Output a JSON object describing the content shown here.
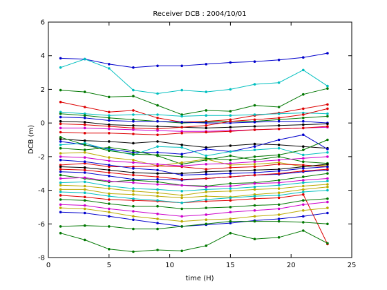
{
  "chart_data": {
    "type": "line",
    "title": "Receiver DCB : 2004/10/01",
    "xlabel": "time (H)",
    "ylabel": "DCB (m)",
    "xlim": [
      0,
      25
    ],
    "ylim": [
      -8,
      6
    ],
    "xticks": [
      0,
      5,
      10,
      15,
      20,
      25
    ],
    "yticks": [
      -8,
      -6,
      -4,
      -2,
      0,
      2,
      4,
      6
    ],
    "grid": false,
    "x": [
      1,
      3,
      5,
      7,
      9,
      11,
      13,
      15,
      17,
      19,
      21,
      23
    ],
    "series": [
      {
        "color": "#0000cc",
        "values": [
          3.85,
          3.8,
          3.5,
          3.3,
          3.4,
          3.4,
          3.5,
          3.6,
          3.65,
          3.75,
          3.9,
          4.15
        ]
      },
      {
        "color": "#00bfbf",
        "values": [
          3.3,
          3.8,
          3.25,
          1.95,
          1.75,
          1.95,
          1.85,
          2.0,
          2.3,
          2.4,
          3.15,
          2.2
        ]
      },
      {
        "color": "#007700",
        "values": [
          1.95,
          1.85,
          1.55,
          1.6,
          1.05,
          0.5,
          0.75,
          0.7,
          1.05,
          0.95,
          1.7,
          2.05
        ]
      },
      {
        "color": "#dd0000",
        "values": [
          1.25,
          0.95,
          0.65,
          0.75,
          0.3,
          0.05,
          0.1,
          0.2,
          0.45,
          0.6,
          0.85,
          1.1
        ]
      },
      {
        "color": "#00bfbf",
        "values": [
          0.65,
          0.55,
          0.45,
          0.5,
          0.5,
          0.4,
          0.45,
          0.45,
          0.5,
          0.55,
          0.6,
          0.55
        ]
      },
      {
        "color": "#007700",
        "values": [
          0.55,
          0.45,
          0.3,
          0.2,
          0.1,
          0.0,
          0.05,
          0.1,
          0.1,
          0.2,
          0.3,
          0.4
        ]
      },
      {
        "color": "#0000cc",
        "values": [
          0.35,
          0.3,
          0.15,
          0.1,
          0.1,
          0.05,
          0.0,
          0.0,
          0.05,
          0.1,
          0.1,
          0.0
        ]
      },
      {
        "color": "#000000",
        "values": [
          0.1,
          0.05,
          -0.1,
          -0.15,
          -0.2,
          -0.25,
          -0.3,
          -0.25,
          -0.2,
          -0.15,
          -0.1,
          -0.05
        ]
      },
      {
        "color": "#dd0000",
        "values": [
          -0.05,
          -0.1,
          -0.2,
          -0.3,
          -0.35,
          -0.25,
          -0.15,
          0.1,
          0.2,
          0.3,
          0.5,
          0.85
        ]
      },
      {
        "color": "#cc00cc",
        "values": [
          -0.3,
          -0.3,
          -0.35,
          -0.4,
          -0.45,
          -0.5,
          -0.5,
          -0.45,
          -0.4,
          -0.35,
          -0.3,
          -0.25
        ]
      },
      {
        "color": "#dd0000",
        "values": [
          -0.55,
          -0.6,
          -0.6,
          -0.65,
          -0.7,
          -0.6,
          -0.55,
          -0.5,
          -0.4,
          -0.35,
          -0.3,
          -0.2
        ]
      },
      {
        "color": "#000000",
        "values": [
          -0.95,
          -1.05,
          -1.1,
          -1.2,
          -1.1,
          -1.3,
          -1.45,
          -1.35,
          -1.25,
          -1.3,
          -1.4,
          -1.5
        ]
      },
      {
        "color": "#0000cc",
        "values": [
          -1.1,
          -1.3,
          -1.55,
          -1.75,
          -1.75,
          -1.85,
          -1.55,
          -1.7,
          -1.4,
          -1.0,
          -0.7,
          -1.55
        ]
      },
      {
        "color": "#00bfbf",
        "values": [
          -1.3,
          -1.2,
          -1.6,
          -1.9,
          -1.4,
          -1.45,
          -1.95,
          -1.7,
          -1.6,
          -1.5,
          -1.9,
          -1.75
        ]
      },
      {
        "color": "#007700",
        "values": [
          -1.5,
          -1.6,
          -1.45,
          -1.65,
          -1.95,
          -2.45,
          -2.2,
          -1.95,
          -2.2,
          -2.0,
          -2.3,
          -2.4
        ]
      },
      {
        "color": "#bbaa00",
        "values": [
          -1.8,
          -1.75,
          -2.05,
          -2.2,
          -2.55,
          -2.35,
          -2.15,
          -2.5,
          -2.45,
          -2.35,
          -2.6,
          -2.5
        ]
      },
      {
        "color": "#dd0000",
        "values": [
          -2.5,
          -2.4,
          -2.6,
          -2.6,
          -2.55,
          -2.6,
          -2.75,
          -2.65,
          -2.6,
          -2.45,
          -2.5,
          -2.6
        ]
      },
      {
        "color": "#000000",
        "values": [
          -2.6,
          -2.65,
          -2.8,
          -2.95,
          -3.0,
          -3.0,
          -2.9,
          -2.85,
          -2.8,
          -2.75,
          -2.6,
          -2.45
        ]
      },
      {
        "color": "#0000cc",
        "values": [
          -2.9,
          -2.95,
          -3.15,
          -3.35,
          -3.35,
          -3.4,
          -3.3,
          -3.2,
          -3.1,
          -3.05,
          -2.9,
          -2.8
        ]
      },
      {
        "color": "#007700",
        "values": [
          -3.1,
          -3.3,
          -3.5,
          -3.4,
          -3.5,
          -3.7,
          -3.75,
          -3.6,
          -3.55,
          -3.4,
          -3.2,
          -3.0
        ]
      },
      {
        "color": "#cc00cc",
        "values": [
          -3.3,
          -3.25,
          -3.45,
          -3.55,
          -3.65,
          -3.7,
          -3.8,
          -3.75,
          -3.6,
          -3.55,
          -3.4,
          -3.3
        ]
      },
      {
        "color": "#00bfbf",
        "values": [
          -3.55,
          -3.5,
          -3.75,
          -3.9,
          -3.95,
          -4.05,
          -3.95,
          -3.9,
          -3.8,
          -3.7,
          -3.55,
          -3.45
        ]
      },
      {
        "color": "#bbaa00",
        "values": [
          -3.95,
          -3.95,
          -4.2,
          -4.25,
          -4.35,
          -4.45,
          -4.35,
          -4.4,
          -4.25,
          -4.15,
          -3.95,
          -3.8
        ]
      },
      {
        "color": "#dd0000",
        "values": [
          -4.3,
          -4.4,
          -4.55,
          -4.6,
          -4.65,
          -4.75,
          -4.65,
          -4.6,
          -4.5,
          -4.45,
          -4.25,
          -7.2
        ]
      },
      {
        "color": "#007700",
        "values": [
          -4.55,
          -4.6,
          -4.8,
          -4.95,
          -4.95,
          -5.1,
          -5.05,
          -5.0,
          -4.9,
          -4.85,
          -4.6,
          -4.5
        ]
      },
      {
        "color": "#cc00cc",
        "values": [
          -4.85,
          -4.9,
          -5.1,
          -5.25,
          -5.4,
          -5.55,
          -5.45,
          -5.3,
          -5.2,
          -5.1,
          -4.85,
          -4.7
        ]
      },
      {
        "color": "#bbaa00",
        "values": [
          -5.05,
          -5.1,
          -5.3,
          -5.55,
          -5.7,
          -5.85,
          -5.75,
          -5.7,
          -5.55,
          -5.45,
          -5.2,
          -5.05
        ]
      },
      {
        "color": "#0000cc",
        "values": [
          -5.3,
          -5.35,
          -5.55,
          -5.75,
          -5.95,
          -6.15,
          -6.05,
          -5.95,
          -5.8,
          -5.7,
          -5.55,
          -5.35
        ]
      },
      {
        "color": "#007700",
        "values": [
          -6.15,
          -6.1,
          -6.15,
          -6.3,
          -6.3,
          -6.15,
          -6.0,
          -5.85,
          -5.85,
          -5.85,
          -5.9,
          -6.0
        ]
      },
      {
        "color": "#007700",
        "values": [
          -6.55,
          -6.95,
          -7.5,
          -7.65,
          -7.55,
          -7.6,
          -7.3,
          -6.55,
          -6.9,
          -6.8,
          -6.4,
          -7.15
        ]
      },
      {
        "color": "#dd0000",
        "values": [
          -2.75,
          -2.8,
          -2.95,
          -3.1,
          -3.2,
          -3.35,
          -3.3,
          -3.2,
          -3.1,
          -3.0,
          -2.85,
          -2.75
        ]
      },
      {
        "color": "#0000cc",
        "values": [
          -2.2,
          -2.3,
          -2.5,
          -2.7,
          -2.8,
          -3.1,
          -3.05,
          -3.0,
          -2.95,
          -2.85,
          -2.7,
          -2.6
        ]
      },
      {
        "color": "#bbaa00",
        "values": [
          -3.7,
          -3.75,
          -3.9,
          -4.05,
          -4.15,
          -4.3,
          -4.1,
          -4.05,
          -3.95,
          -3.9,
          -3.75,
          -3.65
        ]
      },
      {
        "color": "#00bfbf",
        "values": [
          -4.1,
          -4.15,
          -4.35,
          -4.5,
          -4.6,
          -4.75,
          -4.55,
          -4.45,
          -4.35,
          -4.3,
          -4.1,
          -4.0
        ]
      },
      {
        "color": "#cc00cc",
        "values": [
          -2.0,
          -2.05,
          -2.25,
          -2.35,
          -2.45,
          -2.55,
          -2.45,
          -2.4,
          -2.3,
          -2.2,
          -2.1,
          -2.0
        ]
      },
      {
        "color": "#007700",
        "values": [
          -0.85,
          -1.3,
          -1.65,
          -1.85,
          -1.9,
          -2.0,
          -2.1,
          -2.2,
          -2.0,
          -1.9,
          -1.6,
          -1.0
        ]
      }
    ]
  }
}
